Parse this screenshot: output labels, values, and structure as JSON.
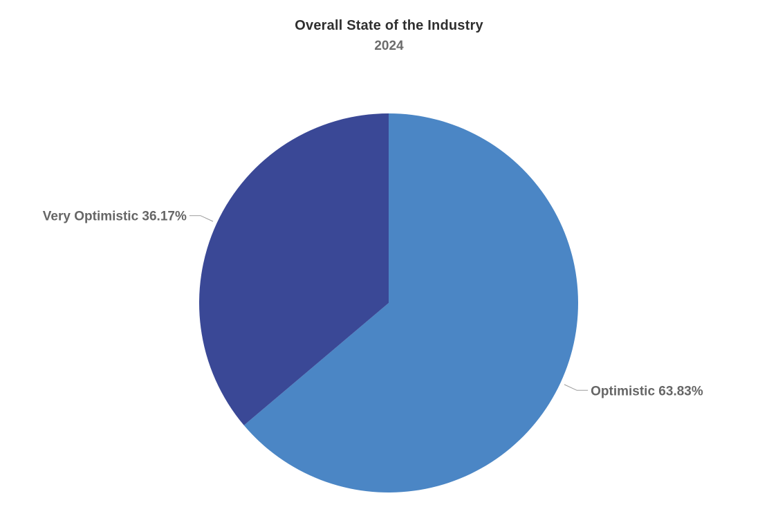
{
  "chart_data": {
    "type": "pie",
    "title": "Overall State of the Industry",
    "subtitle": "2024",
    "slices": [
      {
        "label": "Optimistic",
        "value": 63.83,
        "display": "63.83%",
        "color": "#4b86c5"
      },
      {
        "label": "Very Optimistic",
        "value": 36.17,
        "display": "36.17%",
        "color": "#3a4896"
      }
    ],
    "start_angle_deg": 0,
    "direction": "clockwise",
    "legend": "none",
    "data_labels": "outside-with-leader-lines"
  }
}
